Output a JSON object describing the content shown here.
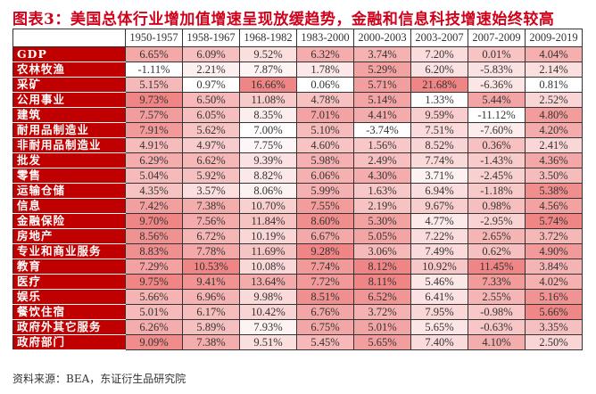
{
  "title": "图表3：美国总体行业增加值增速呈现放缓趋势，金融和信息科技增速始终较高",
  "source": "资料来源：BEA，东证衍生品研究院",
  "colors": {
    "title": "#d0021b",
    "label_bg": "#c00000",
    "scale_low": "#ffffff",
    "scale_high": "#ef8585"
  },
  "columns": [
    "1950-1957",
    "1958-1967",
    "1968-1982",
    "1983-2000",
    "2000-2003",
    "2003-2007",
    "2007-2009",
    "2009-2019"
  ],
  "rows": [
    {
      "label": "GDP",
      "values": [
        "6.65%",
        "6.09%",
        "9.52%",
        "6.32%",
        "3.74%",
        "7.20%",
        "0.01%",
        "4.04%"
      ]
    },
    {
      "label": "农林牧渔",
      "values": [
        "-1.11%",
        "2.21%",
        "7.87%",
        "1.78%",
        "5.29%",
        "6.20%",
        "-5.83%",
        "2.14%"
      ]
    },
    {
      "label": "采矿",
      "values": [
        "5.15%",
        "0.97%",
        "16.66%",
        "0.06%",
        "5.71%",
        "21.68%",
        "-6.36%",
        "0.81%"
      ]
    },
    {
      "label": "公用事业",
      "values": [
        "9.73%",
        "6.50%",
        "11.08%",
        "4.78%",
        "5.14%",
        "1.33%",
        "5.44%",
        "2.52%"
      ]
    },
    {
      "label": "建筑",
      "values": [
        "7.57%",
        "6.05%",
        "8.35%",
        "7.01%",
        "4.41%",
        "9.59%",
        "-11.12%",
        "4.80%"
      ]
    },
    {
      "label": "耐用品制造业",
      "values": [
        "7.91%",
        "5.62%",
        "7.00%",
        "5.10%",
        "-3.74%",
        "7.51%",
        "-7.60%",
        "4.20%"
      ]
    },
    {
      "label": "非耐用品制造业",
      "values": [
        "4.91%",
        "4.97%",
        "7.75%",
        "4.60%",
        "1.56%",
        "8.52%",
        "0.36%",
        "2.41%"
      ]
    },
    {
      "label": "批发",
      "values": [
        "6.29%",
        "6.62%",
        "9.39%",
        "5.98%",
        "2.49%",
        "7.74%",
        "-1.43%",
        "4.36%"
      ]
    },
    {
      "label": "零售",
      "values": [
        "5.04%",
        "5.92%",
        "8.82%",
        "6.06%",
        "4.30%",
        "3.71%",
        "-2.45%",
        "3.50%"
      ]
    },
    {
      "label": "运输仓储",
      "values": [
        "4.35%",
        "3.57%",
        "8.06%",
        "5.99%",
        "1.63%",
        "6.94%",
        "-1.18%",
        "5.38%"
      ]
    },
    {
      "label": "信息",
      "values": [
        "7.42%",
        "7.38%",
        "10.70%",
        "7.55%",
        "2.19%",
        "9.67%",
        "0.98%",
        "4.56%"
      ]
    },
    {
      "label": "金融保险",
      "values": [
        "9.70%",
        "7.56%",
        "11.84%",
        "8.60%",
        "5.30%",
        "4.77%",
        "-2.95%",
        "5.74%"
      ]
    },
    {
      "label": "房地产",
      "values": [
        "8.56%",
        "6.72%",
        "10.19%",
        "6.67%",
        "5.05%",
        "7.22%",
        "2.65%",
        "3.72%"
      ]
    },
    {
      "label": "专业和商业服务",
      "values": [
        "8.83%",
        "7.78%",
        "11.69%",
        "9.28%",
        "3.06%",
        "7.49%",
        "0.62%",
        "4.90%"
      ]
    },
    {
      "label": "教育",
      "values": [
        "7.29%",
        "10.53%",
        "10.08%",
        "7.74%",
        "8.12%",
        "10.92%",
        "11.45%",
        "3.84%"
      ]
    },
    {
      "label": "医疗",
      "values": [
        "9.75%",
        "9.41%",
        "13.64%",
        "7.72%",
        "8.11%",
        "5.46%",
        "7.33%",
        "4.02%"
      ]
    },
    {
      "label": "娱乐",
      "values": [
        "5.66%",
        "6.96%",
        "9.98%",
        "8.51%",
        "6.52%",
        "6.41%",
        "2.55%",
        "5.16%"
      ]
    },
    {
      "label": "餐饮住宿",
      "values": [
        "5.01%",
        "6.17%",
        "10.42%",
        "6.76%",
        "3.72%",
        "7.95%",
        "-0.98%",
        "5.66%"
      ]
    },
    {
      "label": "政府外其它服务",
      "values": [
        "6.26%",
        "5.89%",
        "7.93%",
        "6.75%",
        "5.01%",
        "5.65%",
        "-0.63%",
        "3.35%"
      ]
    },
    {
      "label": "政府部门",
      "values": [
        "9.09%",
        "7.38%",
        "9.51%",
        "5.45%",
        "5.65%",
        "7.40%",
        "4.10%",
        "2.50%"
      ]
    }
  ]
}
